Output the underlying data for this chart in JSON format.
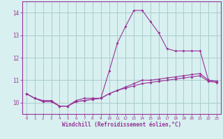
{
  "xlabel": "Windchill (Refroidissement éolien,°C)",
  "x": [
    0,
    1,
    2,
    3,
    4,
    5,
    6,
    7,
    8,
    9,
    10,
    11,
    12,
    13,
    14,
    15,
    16,
    17,
    18,
    19,
    20,
    21,
    22,
    23
  ],
  "line1": [
    10.4,
    10.2,
    10.1,
    10.1,
    9.85,
    9.85,
    10.1,
    10.2,
    10.2,
    10.2,
    11.4,
    12.65,
    13.4,
    14.1,
    14.1,
    13.6,
    13.1,
    12.4,
    12.3,
    12.3,
    12.3,
    12.3,
    11.0,
    10.95
  ],
  "line2": [
    10.4,
    10.2,
    10.05,
    10.05,
    9.85,
    9.85,
    10.05,
    10.1,
    10.15,
    10.2,
    10.4,
    10.55,
    10.7,
    10.85,
    11.0,
    11.0,
    11.05,
    11.1,
    11.15,
    11.2,
    11.25,
    11.3,
    11.0,
    10.95
  ],
  "line3": [
    10.4,
    10.2,
    10.05,
    10.05,
    9.85,
    9.85,
    10.05,
    10.1,
    10.15,
    10.2,
    10.4,
    10.55,
    10.65,
    10.75,
    10.85,
    10.9,
    10.95,
    11.0,
    11.05,
    11.1,
    11.15,
    11.2,
    10.95,
    10.9
  ],
  "line_color": "#993399",
  "bg_color": "#d8f0f0",
  "grid_color": "#aacccc",
  "ylim": [
    9.5,
    14.5
  ],
  "yticks": [
    10,
    11,
    12,
    13,
    14
  ],
  "xlim": [
    -0.5,
    23.5
  ],
  "xticks": [
    0,
    1,
    2,
    3,
    4,
    5,
    6,
    7,
    8,
    9,
    10,
    11,
    12,
    13,
    14,
    15,
    16,
    17,
    18,
    19,
    20,
    21,
    22,
    23
  ]
}
